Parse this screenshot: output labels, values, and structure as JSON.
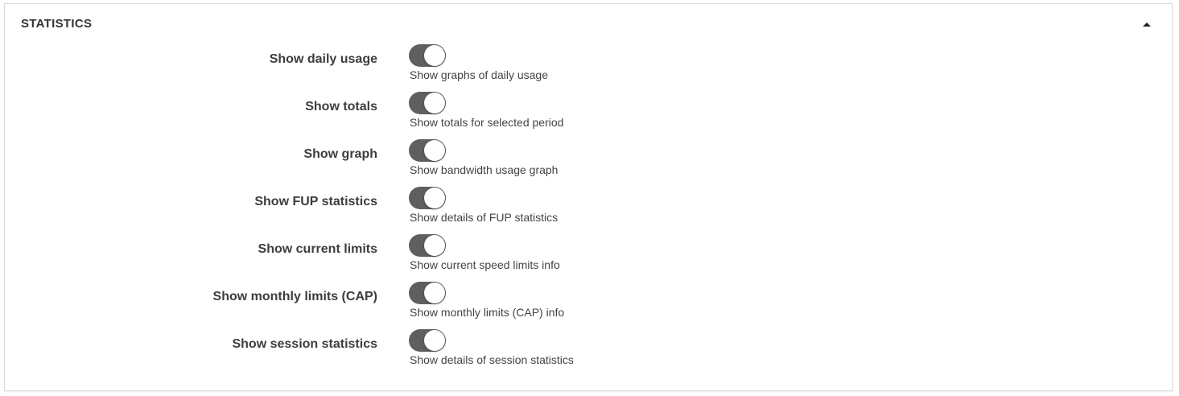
{
  "panel": {
    "title": "STATISTICS",
    "collapse_icon": "caret-up-icon"
  },
  "toggle_color": "#5f5f5f",
  "settings": [
    {
      "label": "Show daily usage",
      "help": "Show graphs of daily usage",
      "enabled": true
    },
    {
      "label": "Show totals",
      "help": "Show totals for selected period",
      "enabled": true
    },
    {
      "label": "Show graph",
      "help": "Show bandwidth usage graph",
      "enabled": true
    },
    {
      "label": "Show FUP statistics",
      "help": "Show details of FUP statistics",
      "enabled": true
    },
    {
      "label": "Show current limits",
      "help": "Show current speed limits info",
      "enabled": true
    },
    {
      "label": "Show monthly limits (CAP)",
      "help": "Show monthly limits (CAP) info",
      "enabled": true
    },
    {
      "label": "Show session statistics",
      "help": "Show details of session statistics",
      "enabled": true
    }
  ]
}
